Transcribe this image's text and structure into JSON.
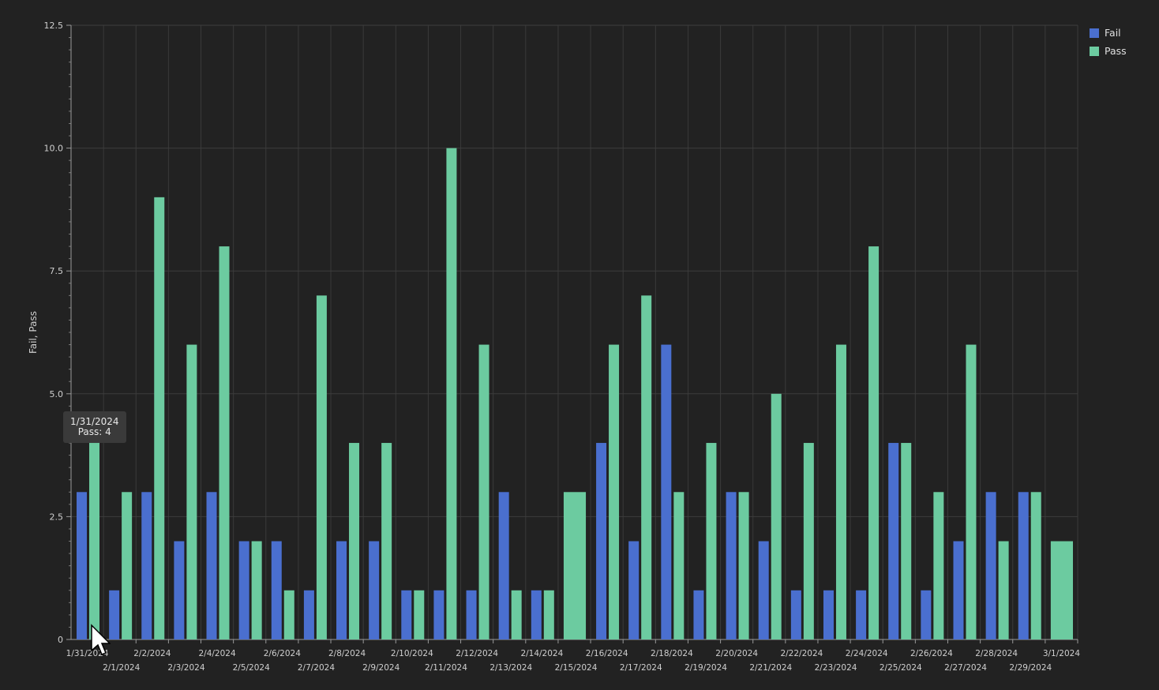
{
  "chart_data": {
    "type": "bar",
    "ylabel": "Fail, Pass",
    "ylim": [
      0,
      12.5
    ],
    "yticks": [
      "0",
      "2.5",
      "5.0",
      "7.5",
      "10.0",
      "12.5"
    ],
    "grid": true,
    "legend_position": "top-right",
    "categories": [
      "1/31/2024",
      "2/1/2024",
      "2/2/2024",
      "2/3/2024",
      "2/4/2024",
      "2/5/2024",
      "2/6/2024",
      "2/7/2024",
      "2/8/2024",
      "2/9/2024",
      "2/10/2024",
      "2/11/2024",
      "2/12/2024",
      "2/13/2024",
      "2/14/2024",
      "2/15/2024",
      "2/16/2024",
      "2/17/2024",
      "2/18/2024",
      "2/19/2024",
      "2/20/2024",
      "2/21/2024",
      "2/22/2024",
      "2/23/2024",
      "2/24/2024",
      "2/25/2024",
      "2/26/2024",
      "2/27/2024",
      "2/28/2024",
      "2/29/2024",
      "3/1/2024"
    ],
    "series": [
      {
        "name": "Fail",
        "color": "#4a6fcf",
        "values": [
          3,
          1,
          3,
          2,
          3,
          2,
          2,
          1,
          2,
          2,
          1,
          1,
          1,
          3,
          1,
          null,
          4,
          2,
          6,
          1,
          3,
          2,
          1,
          1,
          1,
          4,
          1,
          2,
          3,
          3,
          null
        ]
      },
      {
        "name": "Pass",
        "color": "#6ccba0",
        "values": [
          4,
          3,
          9,
          6,
          8,
          2,
          1,
          7,
          4,
          4,
          1,
          10,
          6,
          1,
          1,
          3,
          6,
          7,
          3,
          4,
          3,
          5,
          4,
          6,
          8,
          4,
          3,
          6,
          2,
          3,
          2
        ]
      }
    ]
  },
  "tooltip": {
    "title": "1/31/2024",
    "line": "Pass: 4"
  }
}
